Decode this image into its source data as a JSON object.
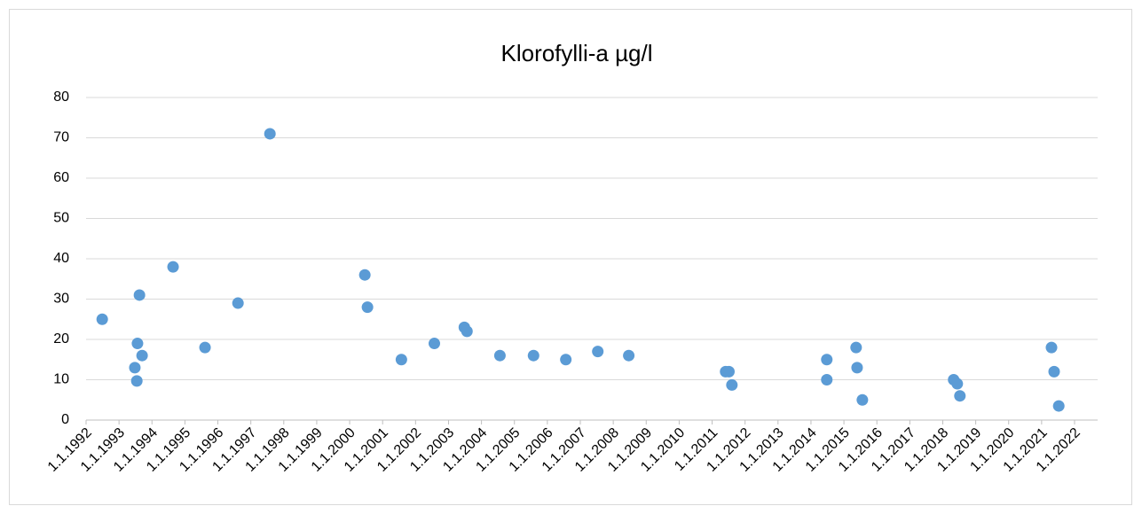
{
  "chart_data": {
    "type": "scatter",
    "title": "Klorofylli-a µg/l",
    "series": [
      {
        "color": "#5b9bd5",
        "x": [
          1992.49,
          1993.62,
          1993.56,
          1993.7,
          1993.48,
          1993.54,
          1994.64,
          1995.61,
          1996.61,
          1997.58,
          2000.46,
          2000.54,
          2001.57,
          2002.57,
          2003.48,
          2003.56,
          2004.56,
          2005.58,
          2006.56,
          2007.53,
          2008.47,
          2011.41,
          2011.51,
          2011.6,
          2014.48,
          2014.48,
          2015.37,
          2015.4,
          2015.56,
          2018.33,
          2018.44,
          2018.52,
          2021.3,
          2021.38,
          2021.52
        ],
        "values": [
          25,
          31,
          19,
          16,
          13,
          9.7,
          38,
          18,
          29,
          71,
          36,
          28,
          15,
          19,
          23,
          22,
          16,
          16,
          15,
          17,
          16,
          12,
          12,
          8.7,
          15,
          10,
          18,
          13,
          5,
          10,
          9,
          6,
          18,
          12,
          3.5
        ]
      }
    ],
    "xlim": [
      1992,
      2022.7
    ],
    "xticks": [
      {
        "value": 1992,
        "label": "1.1.1992"
      },
      {
        "value": 1993,
        "label": "1.1.1993"
      },
      {
        "value": 1994,
        "label": "1.1.1994"
      },
      {
        "value": 1995,
        "label": "1.1.1995"
      },
      {
        "value": 1996,
        "label": "1.1.1996"
      },
      {
        "value": 1997,
        "label": "1.1.1997"
      },
      {
        "value": 1998,
        "label": "1.1.1998"
      },
      {
        "value": 1999,
        "label": "1.1.1999"
      },
      {
        "value": 2000,
        "label": "1.1.2000"
      },
      {
        "value": 2001,
        "label": "1.1.2001"
      },
      {
        "value": 2002,
        "label": "1.1.2002"
      },
      {
        "value": 2003,
        "label": "1.1.2003"
      },
      {
        "value": 2004,
        "label": "1.1.2004"
      },
      {
        "value": 2005,
        "label": "1.1.2005"
      },
      {
        "value": 2006,
        "label": "1.1.2006"
      },
      {
        "value": 2007,
        "label": "1.1.2007"
      },
      {
        "value": 2008,
        "label": "1.1.2008"
      },
      {
        "value": 2009,
        "label": "1.1.2009"
      },
      {
        "value": 2010,
        "label": "1.1.2010"
      },
      {
        "value": 2011,
        "label": "1.1.2011"
      },
      {
        "value": 2012,
        "label": "1.1.2012"
      },
      {
        "value": 2013,
        "label": "1.1.2013"
      },
      {
        "value": 2014,
        "label": "1.1.2014"
      },
      {
        "value": 2015,
        "label": "1.1.2015"
      },
      {
        "value": 2016,
        "label": "1.1.2016"
      },
      {
        "value": 2017,
        "label": "1.1.2017"
      },
      {
        "value": 2018,
        "label": "1.1.2018"
      },
      {
        "value": 2019,
        "label": "1.1.2019"
      },
      {
        "value": 2020,
        "label": "1.1.2020"
      },
      {
        "value": 2021,
        "label": "1.1.2021"
      },
      {
        "value": 2022,
        "label": "1.1.2022"
      }
    ],
    "ylim": [
      0,
      80
    ],
    "yticks": [
      0,
      10,
      20,
      30,
      40,
      50,
      60,
      70,
      80
    ],
    "grid": true
  }
}
